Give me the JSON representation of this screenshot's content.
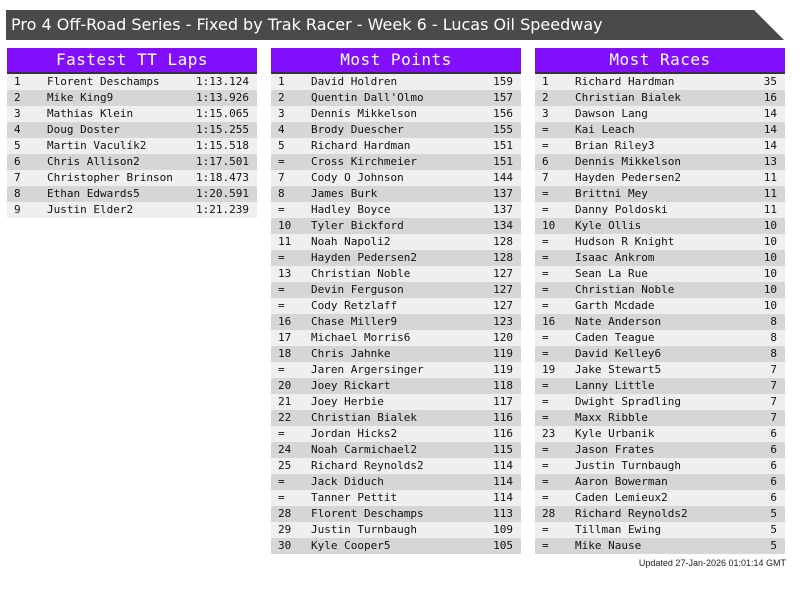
{
  "title": "Pro 4 Off-Road Series - Fixed by Trak Racer - Week 6 - Lucas Oil Speedway",
  "colors": {
    "header": "#8210fe",
    "titlebar": "#4a4a4a",
    "row_light": "#efefef",
    "row_dark": "#d6d6d6"
  },
  "updated": "Updated 27-Jan-2026 01:01:14 GMT",
  "panels": [
    {
      "title": "Fastest TT Laps",
      "rows": [
        [
          "1",
          "Florent Deschamps",
          "1:13.124"
        ],
        [
          "2",
          "Mike King9",
          "1:13.926"
        ],
        [
          "3",
          "Mathias Klein",
          "1:15.065"
        ],
        [
          "4",
          "Doug Doster",
          "1:15.255"
        ],
        [
          "5",
          "Martin Vaculík2",
          "1:15.518"
        ],
        [
          "6",
          "Chris Allison2",
          "1:17.501"
        ],
        [
          "7",
          "Christopher Brinson",
          "1:18.473"
        ],
        [
          "8",
          "Ethan Edwards5",
          "1:20.591"
        ],
        [
          "9",
          "Justin Elder2",
          "1:21.239"
        ]
      ]
    },
    {
      "title": "Most Points",
      "rows": [
        [
          "1",
          "David Holdren",
          "159"
        ],
        [
          "2",
          "Quentin Dall'Olmo",
          "157"
        ],
        [
          "3",
          "Dennis Mikkelson",
          "156"
        ],
        [
          "4",
          "Brody Duescher",
          "155"
        ],
        [
          "5",
          "Richard Hardman",
          "151"
        ],
        [
          "=",
          "Cross Kirchmeier",
          "151"
        ],
        [
          "7",
          "Cody O Johnson",
          "144"
        ],
        [
          "8",
          "James Burk",
          "137"
        ],
        [
          "=",
          "Hadley Boyce",
          "137"
        ],
        [
          "10",
          "Tyler Bickford",
          "134"
        ],
        [
          "11",
          "Noah Napoli2",
          "128"
        ],
        [
          "=",
          "Hayden Pedersen2",
          "128"
        ],
        [
          "13",
          "Christian Noble",
          "127"
        ],
        [
          "=",
          "Devin Ferguson",
          "127"
        ],
        [
          "=",
          "Cody Retzlaff",
          "127"
        ],
        [
          "16",
          "Chase Miller9",
          "123"
        ],
        [
          "17",
          "Michael Morris6",
          "120"
        ],
        [
          "18",
          "Chris Jahnke",
          "119"
        ],
        [
          "=",
          "Jaren Argersinger",
          "119"
        ],
        [
          "20",
          "Joey Rickart",
          "118"
        ],
        [
          "21",
          "Joey Herbie",
          "117"
        ],
        [
          "22",
          "Christian Bialek",
          "116"
        ],
        [
          "=",
          "Jordan Hicks2",
          "116"
        ],
        [
          "24",
          "Noah Carmichael2",
          "115"
        ],
        [
          "25",
          "Richard Reynolds2",
          "114"
        ],
        [
          "=",
          "Jack Diduch",
          "114"
        ],
        [
          "=",
          "Tanner Pettit",
          "114"
        ],
        [
          "28",
          "Florent Deschamps",
          "113"
        ],
        [
          "29",
          "Justin Turnbaugh",
          "109"
        ],
        [
          "30",
          "Kyle Cooper5",
          "105"
        ]
      ]
    },
    {
      "title": "Most Races",
      "rows": [
        [
          "1",
          "Richard Hardman",
          "35"
        ],
        [
          "2",
          "Christian Bialek",
          "16"
        ],
        [
          "3",
          "Dawson Lang",
          "14"
        ],
        [
          "=",
          "Kai Leach",
          "14"
        ],
        [
          "=",
          "Brian Riley3",
          "14"
        ],
        [
          "6",
          "Dennis Mikkelson",
          "13"
        ],
        [
          "7",
          "Hayden Pedersen2",
          "11"
        ],
        [
          "=",
          "Brittni Mey",
          "11"
        ],
        [
          "=",
          "Danny Poldoski",
          "11"
        ],
        [
          "10",
          "Kyle Ollis",
          "10"
        ],
        [
          "=",
          "Hudson R Knight",
          "10"
        ],
        [
          "=",
          "Isaac Ankrom",
          "10"
        ],
        [
          "=",
          "Sean La Rue",
          "10"
        ],
        [
          "=",
          "Christian Noble",
          "10"
        ],
        [
          "=",
          "Garth Mcdade",
          "10"
        ],
        [
          "16",
          "Nate Anderson",
          "8"
        ],
        [
          "=",
          "Caden Teague",
          "8"
        ],
        [
          "=",
          "David Kelley6",
          "8"
        ],
        [
          "19",
          "Jake Stewart5",
          "7"
        ],
        [
          "=",
          "Lanny Little",
          "7"
        ],
        [
          "=",
          "Dwight Spradling",
          "7"
        ],
        [
          "=",
          "Maxx Ribble",
          "7"
        ],
        [
          "23",
          "Kyle Urbanik",
          "6"
        ],
        [
          "=",
          "Jason Frates",
          "6"
        ],
        [
          "=",
          "Justin Turnbaugh",
          "6"
        ],
        [
          "=",
          "Aaron Bowerman",
          "6"
        ],
        [
          "=",
          "Caden Lemieux2",
          "6"
        ],
        [
          "28",
          "Richard Reynolds2",
          "5"
        ],
        [
          "=",
          "Tillman Ewing",
          "5"
        ],
        [
          "=",
          "Mike Nause",
          "5"
        ]
      ]
    }
  ]
}
